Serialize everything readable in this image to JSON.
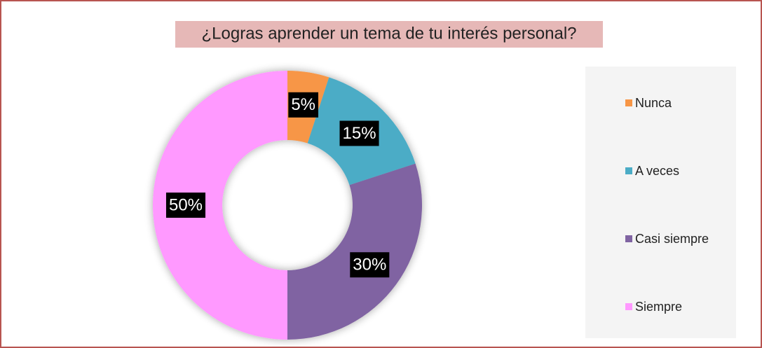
{
  "chart_data": {
    "type": "pie",
    "title": "¿Logras aprender un tema de tu interés personal?",
    "categories": [
      "Nunca",
      "A veces",
      "Casi siempre",
      "Siempre"
    ],
    "values": [
      5,
      15,
      30,
      50
    ],
    "value_labels": [
      "5%",
      "15%",
      "30%",
      "50%"
    ],
    "colors": [
      "#f79646",
      "#4bacc6",
      "#8064a2",
      "#ff99ff"
    ],
    "legend": "right"
  }
}
